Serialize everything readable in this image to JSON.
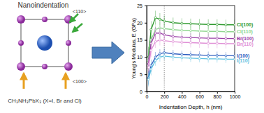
{
  "diagram": {
    "title": "Nanoindentation",
    "formula": "CH₃NH₃PbX₃ (X=I, Br and Cl)",
    "directions": [
      "<110>",
      "<100>"
    ]
  },
  "chart_data": {
    "type": "line",
    "x_label": "Indentation Depth, h (nm)",
    "y_label": "Young's Modulus, E (GPa)",
    "x": [
      20,
      50,
      100,
      150,
      200,
      300,
      400,
      500,
      600,
      700,
      800,
      900,
      1000
    ],
    "xlim": [
      0,
      1000
    ],
    "xticks": [
      0,
      200,
      400,
      600,
      800,
      1000
    ],
    "ylim": [
      0,
      25
    ],
    "yticks": [
      0,
      5,
      10,
      15,
      20,
      25
    ],
    "reference_x": 200,
    "marker": "circle",
    "line_style": "solid",
    "series": [
      {
        "name": "Cl(100)",
        "color": "#2e9a2e",
        "values": [
          10,
          18,
          21.5,
          21,
          20.5,
          20,
          19.8,
          19.7,
          19.6,
          19.5,
          19.5,
          19.4,
          19.4
        ],
        "errors": [
          3,
          2.5,
          2,
          1.8,
          1.6,
          1.5,
          1.5,
          1.5,
          1.5,
          1.5,
          1.5,
          1.5,
          1.5
        ]
      },
      {
        "name": "Cl(110)",
        "color": "#8fd68f",
        "values": [
          9,
          15,
          18,
          18.5,
          18.3,
          18,
          17.8,
          17.7,
          17.6,
          17.5,
          17.5,
          17.4,
          17.4
        ],
        "errors": [
          3,
          2.5,
          2,
          1.8,
          1.6,
          1.5,
          1.5,
          1.5,
          1.5,
          1.5,
          1.5,
          1.5,
          1.5
        ]
      },
      {
        "name": "Br(100)",
        "color": "#9b3fa8",
        "values": [
          8,
          14,
          17,
          17,
          16.5,
          16,
          15.8,
          15.7,
          15.6,
          15.5,
          15.5,
          15.4,
          15.4
        ],
        "errors": [
          2.5,
          2,
          1.8,
          1.6,
          1.5,
          1.4,
          1.4,
          1.4,
          1.4,
          1.4,
          1.4,
          1.4,
          1.4
        ]
      },
      {
        "name": "Br(110)",
        "color": "#e08fd6",
        "values": [
          7,
          12,
          14.5,
          15,
          14.8,
          14.5,
          14.3,
          14.2,
          14.1,
          14,
          14,
          13.9,
          13.9
        ],
        "errors": [
          2.5,
          2,
          1.8,
          1.6,
          1.5,
          1.4,
          1.4,
          1.4,
          1.4,
          1.4,
          1.4,
          1.4,
          1.4
        ]
      },
      {
        "name": "I(100)",
        "color": "#2f5fc0",
        "values": [
          4,
          7.5,
          10,
          11,
          11.3,
          11,
          10.8,
          10.7,
          10.6,
          10.5,
          10.5,
          10.4,
          10.4
        ],
        "errors": [
          2,
          1.8,
          1.5,
          1.3,
          1.2,
          1.1,
          1.1,
          1.1,
          1.1,
          1.1,
          1.1,
          1.1,
          1.1
        ]
      },
      {
        "name": "I(110)",
        "color": "#5bc0e0",
        "values": [
          3.5,
          6.5,
          9,
          10,
          10.3,
          10,
          9.8,
          9.7,
          9.6,
          9.5,
          9.5,
          9.4,
          9.4
        ],
        "errors": [
          2,
          1.8,
          1.5,
          1.3,
          1.2,
          1.1,
          1.1,
          1.1,
          1.1,
          1.1,
          1.1,
          1.1,
          1.1
        ]
      }
    ]
  }
}
